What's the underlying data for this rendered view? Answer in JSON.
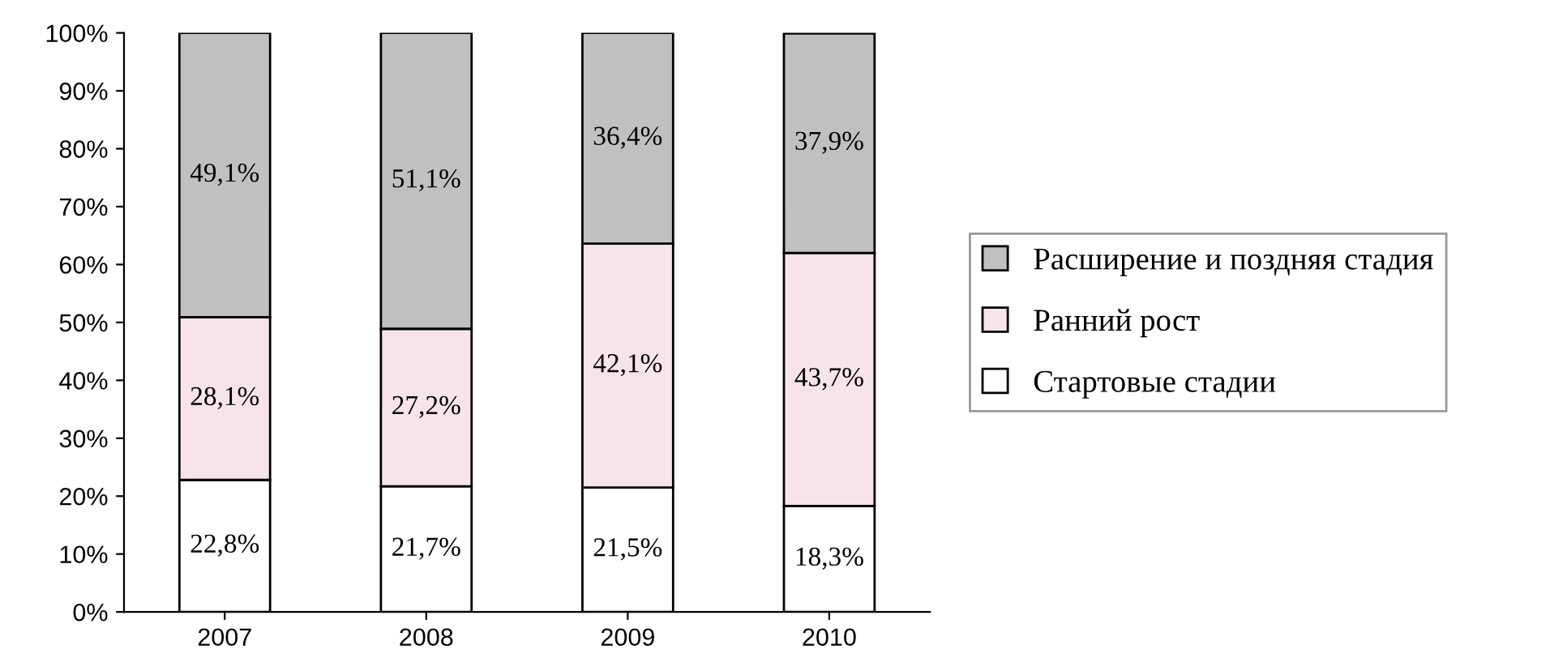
{
  "chart_data": {
    "type": "bar",
    "stacked": true,
    "categories": [
      "2007",
      "2008",
      "2009",
      "2010"
    ],
    "series": [
      {
        "name": "Стартовые стадии",
        "color": "#ffffff",
        "values": [
          22.8,
          21.7,
          21.5,
          18.3
        ],
        "value_labels": [
          "22,8%",
          "21,7%",
          "21,5%",
          "18,3%"
        ]
      },
      {
        "name": "Ранний рост",
        "color": "#f7e4ea",
        "values": [
          28.1,
          27.2,
          42.1,
          43.7
        ],
        "value_labels": [
          "28,1%",
          "27,2%",
          "42,1%",
          "43,7%"
        ]
      },
      {
        "name": "Расширение и поздняя стадия",
        "color": "#c0c0c0",
        "values": [
          49.1,
          51.1,
          36.4,
          37.9
        ],
        "value_labels": [
          "49,1%",
          "51,1%",
          "36,4%",
          "37,9%"
        ]
      }
    ],
    "ylim": [
      0,
      100
    ],
    "yticks": [
      {
        "value": 0,
        "label": "0%"
      },
      {
        "value": 10,
        "label": "10%"
      },
      {
        "value": 20,
        "label": "20%"
      },
      {
        "value": 30,
        "label": "30%"
      },
      {
        "value": 40,
        "label": "40%"
      },
      {
        "value": 50,
        "label": "50%"
      },
      {
        "value": 60,
        "label": "60%"
      },
      {
        "value": 70,
        "label": "70%"
      },
      {
        "value": 80,
        "label": "80%"
      },
      {
        "value": 90,
        "label": "90%"
      },
      {
        "value": 100,
        "label": "100%"
      }
    ],
    "grid": false,
    "legend": "right"
  }
}
